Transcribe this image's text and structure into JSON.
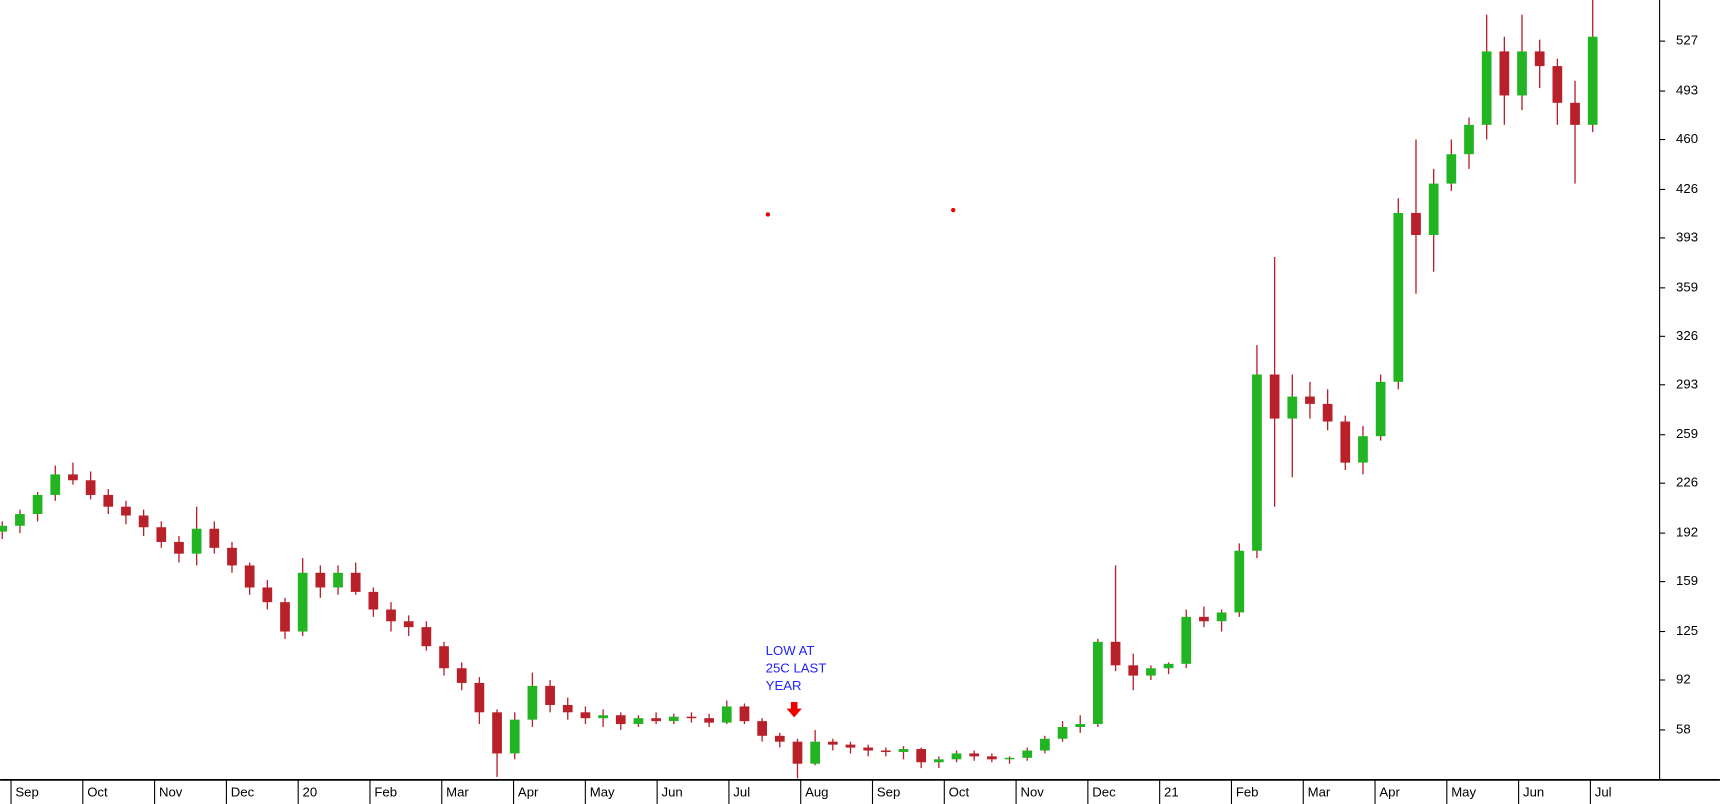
{
  "chart_data": {
    "type": "candlestick",
    "candles": [
      [
        193,
        200,
        188,
        197
      ],
      [
        197,
        208,
        192,
        205
      ],
      [
        205,
        220,
        200,
        218
      ],
      [
        218,
        238,
        214,
        232
      ],
      [
        232,
        240,
        225,
        228
      ],
      [
        228,
        234,
        215,
        218
      ],
      [
        218,
        222,
        205,
        210
      ],
      [
        210,
        214,
        198,
        204
      ],
      [
        204,
        208,
        190,
        196
      ],
      [
        196,
        200,
        182,
        186
      ],
      [
        186,
        190,
        172,
        178
      ],
      [
        178,
        210,
        170,
        195
      ],
      [
        195,
        200,
        178,
        182
      ],
      [
        182,
        186,
        165,
        170
      ],
      [
        170,
        172,
        150,
        155
      ],
      [
        155,
        160,
        140,
        145
      ],
      [
        145,
        148,
        120,
        125
      ],
      [
        125,
        175,
        122,
        165
      ],
      [
        165,
        170,
        148,
        155
      ],
      [
        155,
        170,
        150,
        165
      ],
      [
        165,
        172,
        150,
        152
      ],
      [
        152,
        155,
        135,
        140
      ],
      [
        140,
        145,
        125,
        132
      ],
      [
        132,
        136,
        122,
        128
      ],
      [
        128,
        132,
        112,
        115
      ],
      [
        115,
        118,
        95,
        100
      ],
      [
        100,
        104,
        85,
        90
      ],
      [
        90,
        94,
        62,
        70
      ],
      [
        70,
        72,
        26,
        42
      ],
      [
        42,
        70,
        38,
        65
      ],
      [
        65,
        97,
        60,
        88
      ],
      [
        88,
        92,
        70,
        75
      ],
      [
        75,
        80,
        65,
        70
      ],
      [
        70,
        74,
        62,
        66
      ],
      [
        66,
        72,
        60,
        68
      ],
      [
        68,
        70,
        58,
        62
      ],
      [
        62,
        68,
        60,
        66
      ],
      [
        66,
        70,
        62,
        64
      ],
      [
        64,
        69,
        62,
        67
      ],
      [
        67,
        70,
        63,
        66
      ],
      [
        66,
        69,
        60,
        63
      ],
      [
        63,
        78,
        62,
        74
      ],
      [
        74,
        76,
        62,
        64
      ],
      [
        64,
        66,
        50,
        54
      ],
      [
        54,
        56,
        46,
        50
      ],
      [
        50,
        52,
        25,
        35
      ],
      [
        35,
        58,
        34,
        50
      ],
      [
        50,
        52,
        44,
        48
      ],
      [
        48,
        50,
        42,
        46
      ],
      [
        46,
        48,
        40,
        44
      ],
      [
        44,
        46,
        40,
        43
      ],
      [
        43,
        47,
        38,
        45
      ],
      [
        45,
        46,
        32,
        36
      ],
      [
        36,
        40,
        32,
        38
      ],
      [
        38,
        44,
        36,
        42
      ],
      [
        42,
        44,
        37,
        40
      ],
      [
        40,
        42,
        36,
        38
      ],
      [
        38,
        40,
        35,
        39
      ],
      [
        39,
        46,
        37,
        44
      ],
      [
        44,
        54,
        42,
        52
      ],
      [
        52,
        64,
        50,
        60
      ],
      [
        60,
        68,
        56,
        62
      ],
      [
        62,
        120,
        60,
        118
      ],
      [
        118,
        170,
        98,
        102
      ],
      [
        102,
        110,
        85,
        95
      ],
      [
        95,
        102,
        92,
        100
      ],
      [
        100,
        104,
        96,
        103
      ],
      [
        103,
        140,
        100,
        135
      ],
      [
        135,
        142,
        128,
        132
      ],
      [
        132,
        140,
        125,
        138
      ],
      [
        138,
        185,
        135,
        180
      ],
      [
        180,
        320,
        175,
        300
      ],
      [
        300,
        380,
        210,
        270
      ],
      [
        270,
        300,
        230,
        285
      ],
      [
        285,
        295,
        270,
        280
      ],
      [
        280,
        290,
        262,
        268
      ],
      [
        268,
        272,
        235,
        240
      ],
      [
        240,
        265,
        232,
        258
      ],
      [
        258,
        300,
        255,
        295
      ],
      [
        295,
        420,
        290,
        410
      ],
      [
        410,
        460,
        355,
        395
      ],
      [
        395,
        440,
        370,
        430
      ],
      [
        430,
        460,
        425,
        450
      ],
      [
        450,
        475,
        440,
        470
      ],
      [
        470,
        545,
        460,
        520
      ],
      [
        520,
        530,
        470,
        490
      ],
      [
        490,
        545,
        480,
        520
      ],
      [
        520,
        528,
        495,
        510
      ],
      [
        510,
        515,
        470,
        485
      ],
      [
        485,
        500,
        430,
        470
      ],
      [
        470,
        555,
        465,
        530
      ]
    ],
    "months": [
      "Sep",
      "Oct",
      "Nov",
      "Dec",
      "20",
      "Feb",
      "Mar",
      "Apr",
      "May",
      "Jun",
      "Jul",
      "Aug",
      "Sep",
      "Oct",
      "Nov",
      "Dec",
      "21",
      "Feb",
      "Mar",
      "Apr",
      "May",
      "Jun",
      "Jul"
    ],
    "ylim": [
      24,
      555
    ],
    "yticks": [
      58,
      92,
      125,
      159,
      192,
      226,
      259,
      293,
      326,
      359,
      393,
      426,
      460,
      493,
      527
    ],
    "up_color": "#22b422",
    "down_color": "#b8202a",
    "annotation": [
      "LOW AT",
      "25C LAST",
      "YEAR"
    ]
  }
}
